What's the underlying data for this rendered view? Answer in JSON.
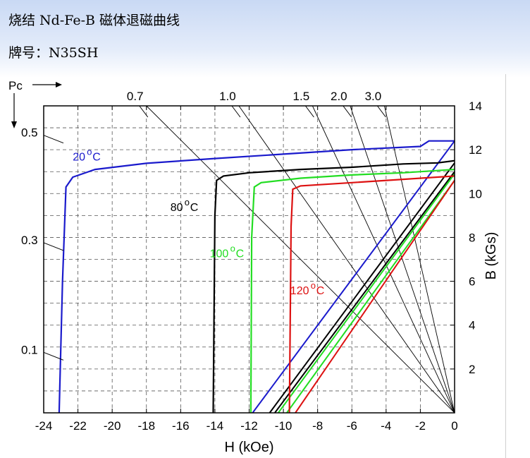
{
  "header": {
    "title": "烧结 Nd-Fe-B 磁体退磁曲线",
    "brand": "牌号：N35SH"
  },
  "chart_data": {
    "type": "line",
    "xlabel": "H (kOe)",
    "ylabel": "B (kGs)",
    "pc_label": "Pc",
    "xlim": [
      -24,
      0
    ],
    "ylim": [
      0,
      14
    ],
    "xticks": [
      "-24",
      "-22",
      "-20",
      "-18",
      "-16",
      "-14",
      "-12",
      "-10",
      "-8",
      "-6",
      "-4",
      "-2",
      "0"
    ],
    "yticks": [
      "2",
      "4",
      "6",
      "8",
      "10",
      "12",
      "14"
    ],
    "grid": true,
    "pc_ticks": [
      {
        "label": "0.5",
        "y": 12.4
      },
      {
        "label": "0.3",
        "y": 7.5
      },
      {
        "label": "0.1",
        "y": 2.5
      }
    ],
    "load_lines": [
      {
        "label": "0.7",
        "x": -18
      },
      {
        "label": "1.0",
        "x": -12.6
      },
      {
        "label": "1.5",
        "x": -8.3
      },
      {
        "label": "2.0",
        "x": -6.1
      },
      {
        "label": "3.0",
        "x": -4.1
      }
    ],
    "series": [
      {
        "name": "20 °C",
        "color": "#1a1acc",
        "demag": [
          [
            -23.1,
            0
          ],
          [
            -22.9,
            6
          ],
          [
            -22.7,
            10.3
          ],
          [
            -22.3,
            10.75
          ],
          [
            -21,
            11.1
          ],
          [
            -18,
            11.38
          ],
          [
            -14,
            11.6
          ],
          [
            -10,
            11.8
          ],
          [
            -6,
            12.0
          ],
          [
            -2,
            12.15
          ],
          [
            -1.5,
            12.4
          ],
          [
            0,
            12.4
          ]
        ],
        "recoil": [
          [
            -11.8,
            0
          ],
          [
            0,
            12.4
          ]
        ],
        "label": {
          "main": "20",
          "x": -22.3,
          "y": 11.5
        }
      },
      {
        "name": "80 °C",
        "color": "#000000",
        "demag": [
          [
            -14.1,
            0
          ],
          [
            -14.0,
            9
          ],
          [
            -13.9,
            10.6
          ],
          [
            -13.5,
            10.8
          ],
          [
            -12,
            10.95
          ],
          [
            -9,
            11.1
          ],
          [
            -6,
            11.2
          ],
          [
            -3,
            11.35
          ],
          [
            -1,
            11.4
          ],
          [
            0,
            11.5
          ]
        ],
        "recoil": [
          [
            -10.8,
            0
          ],
          [
            0,
            11.4
          ]
        ],
        "recoil2": [
          [
            -10.5,
            0
          ],
          [
            0,
            11.0
          ]
        ],
        "label": {
          "main": "80",
          "x": -16.6,
          "y": 9.2
        }
      },
      {
        "name": "100 °C",
        "color": "#22dd22",
        "demag": [
          [
            -11.9,
            0
          ],
          [
            -11.85,
            8
          ],
          [
            -11.7,
            10.3
          ],
          [
            -11.3,
            10.5
          ],
          [
            -9,
            10.7
          ],
          [
            -6,
            10.85
          ],
          [
            -3,
            10.95
          ],
          [
            0,
            11.1
          ]
        ],
        "recoil": [
          [
            -10.3,
            0
          ],
          [
            0,
            10.9
          ]
        ],
        "recoil2": [
          [
            -9.8,
            0
          ],
          [
            0,
            10.6
          ]
        ],
        "label": {
          "main": "100",
          "x": -14.3,
          "y": 7.1
        }
      },
      {
        "name": "120 °C",
        "color": "#dd1111",
        "demag": [
          [
            -9.65,
            0
          ],
          [
            -9.55,
            8.5
          ],
          [
            -9.45,
            10.2
          ],
          [
            -9,
            10.35
          ],
          [
            -6,
            10.5
          ],
          [
            -3,
            10.65
          ],
          [
            0,
            10.8
          ]
        ],
        "recoil": [
          [
            -9.3,
            0
          ],
          [
            0,
            10.6
          ]
        ],
        "label": {
          "main": "120",
          "x": -9.6,
          "y": 5.4
        }
      }
    ]
  }
}
